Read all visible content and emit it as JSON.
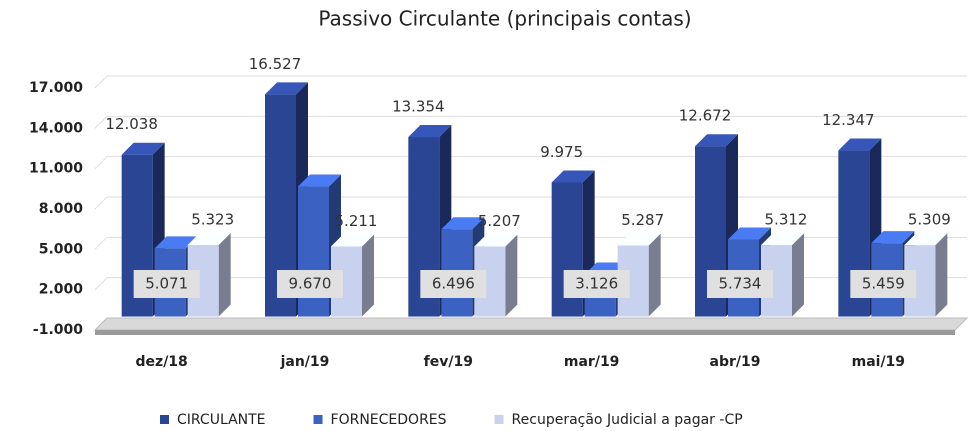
{
  "chart_data": {
    "type": "bar3d",
    "title": "Passivo Circulante (principais contas)",
    "categories": [
      "dez/18",
      "jan/19",
      "fev/19",
      "mar/19",
      "abr/19",
      "mai/19"
    ],
    "series": [
      {
        "name": "CIRCULANTE",
        "color": "#2b4595",
        "values": [
          12038,
          16527,
          13354,
          9975,
          12672,
          12347
        ],
        "value_labels": [
          "12.038",
          "16.527",
          "13.354",
          "9.975",
          "12.672",
          "12.347"
        ]
      },
      {
        "name": "FORNECEDORES",
        "color": "#3b62c2",
        "values": [
          5071,
          9670,
          6496,
          3126,
          5734,
          5459
        ],
        "value_labels": [
          "5.071",
          "9.670",
          "6.496",
          "3.126",
          "5.734",
          "5.459"
        ]
      },
      {
        "name": "Recuperação Judicial a pagar -CP",
        "color": "#c8d2ee",
        "values": [
          5323,
          5211,
          5207,
          5287,
          5312,
          5309
        ],
        "value_labels": [
          "5.323",
          "5.211",
          "5.207",
          "5.287",
          "5.312",
          "5.309"
        ]
      }
    ],
    "ylim": [
      -1000,
      17000
    ],
    "yticks": [
      {
        "value": -1000,
        "label": "-1.000"
      },
      {
        "value": 2000,
        "label": "2.000"
      },
      {
        "value": 5000,
        "label": "5.000"
      },
      {
        "value": 8000,
        "label": "8.000"
      },
      {
        "value": 11000,
        "label": "11.000"
      },
      {
        "value": 14000,
        "label": "14.000"
      },
      {
        "value": 17000,
        "label": "17.000"
      }
    ],
    "grid": true,
    "legend": "bottom"
  }
}
